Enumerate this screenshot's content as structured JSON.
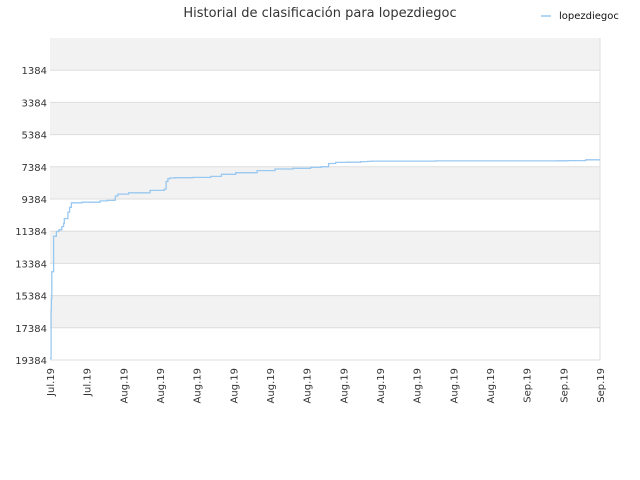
{
  "chart_data": {
    "type": "line",
    "title": "Historial de clasificación para lopezdiegoc",
    "xlabel": "",
    "ylabel": "",
    "y_inverted": true,
    "ylim": [
      19384,
      -616
    ],
    "yticks": [
      1384,
      3384,
      5384,
      7384,
      9384,
      11384,
      13384,
      15384,
      17384,
      19384
    ],
    "xticks": [
      "Jul.19",
      "Jul.19",
      "Aug.19",
      "Aug.19",
      "Aug.19",
      "Aug.19",
      "Aug.19",
      "Aug.19",
      "Aug.19",
      "Aug.19",
      "Aug.19",
      "Aug.19",
      "Aug.19",
      "Sep.19",
      "Sep.19",
      "Sep.19"
    ],
    "grid": true,
    "legend_position": "top-right",
    "colors": {
      "series": "#99c8f0",
      "band": "#f2f2f2",
      "grid": "#dddddd"
    },
    "series": [
      {
        "name": "lopezdiegoc",
        "x": [
          0.0,
          0.3,
          0.4,
          0.5,
          1.0,
          1.8,
          2.5,
          3.3,
          3.8,
          4.0,
          5.0,
          5.5,
          6.0,
          9.0,
          14.0,
          16.0,
          18.0,
          18.3,
          19.0,
          22.0,
          28.0,
          32.0,
          32.5,
          33.0,
          33.5,
          35.0,
          40.0,
          45.0,
          48.0,
          52.0,
          58.0,
          63.0,
          68.0,
          73.0,
          76.0,
          78.0,
          80.0,
          83.0,
          87.0,
          89.0,
          90.0,
          100.0,
          108.0,
          130.0,
          142.0,
          145.0,
          150.0,
          154.0
        ],
        "values": [
          19300,
          16300,
          15600,
          13900,
          11700,
          11400,
          11300,
          11100,
          10900,
          10600,
          10200,
          9900,
          9620,
          9580,
          9500,
          9470,
          9450,
          9200,
          9080,
          9000,
          8850,
          8770,
          8300,
          8130,
          8080,
          8060,
          8040,
          7980,
          7850,
          7750,
          7620,
          7520,
          7480,
          7420,
          7380,
          7180,
          7110,
          7100,
          7060,
          7050,
          7030,
          7030,
          7020,
          7020,
          7010,
          7000,
          6950,
          6950
        ]
      }
    ]
  }
}
